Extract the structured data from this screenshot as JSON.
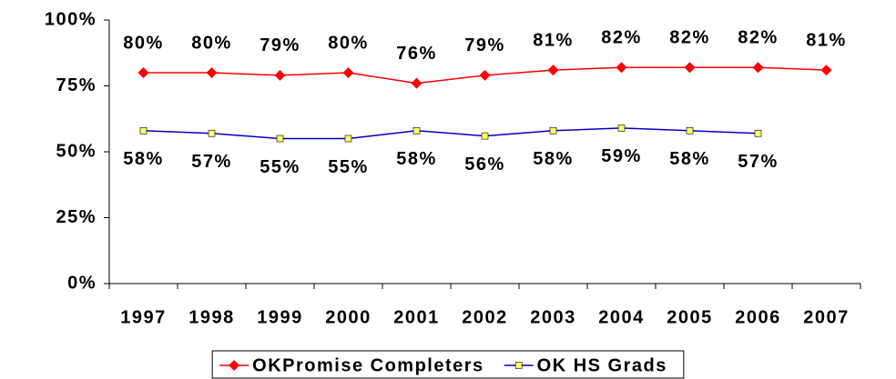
{
  "chart_data": {
    "type": "line",
    "categories": [
      "1997",
      "1998",
      "1999",
      "2000",
      "2001",
      "2002",
      "2003",
      "2004",
      "2005",
      "2006",
      "2007"
    ],
    "series": [
      {
        "name": "OKPromise Completers",
        "color": "#ff0000",
        "marker": "diamond",
        "label_position": "above",
        "values": [
          80,
          80,
          79,
          80,
          76,
          79,
          81,
          82,
          82,
          82,
          81
        ],
        "value_labels": [
          "80%",
          "80%",
          "79%",
          "80%",
          "76%",
          "79%",
          "81%",
          "82%",
          "82%",
          "82%",
          "81%"
        ]
      },
      {
        "name": "OK HS Grads",
        "color": "#0000cc",
        "marker": "square",
        "label_position": "below",
        "values": [
          58,
          57,
          55,
          55,
          58,
          56,
          58,
          59,
          58,
          57,
          null
        ],
        "value_labels": [
          "58%",
          "57%",
          "55%",
          "55%",
          "58%",
          "56%",
          "58%",
          "59%",
          "58%",
          "57%",
          null
        ]
      }
    ],
    "ylim": [
      0,
      100
    ],
    "yticks": [
      {
        "value": 0,
        "label": "0%"
      },
      {
        "value": 25,
        "label": "25%"
      },
      {
        "value": 50,
        "label": "50%"
      },
      {
        "value": 75,
        "label": "75%"
      },
      {
        "value": 100,
        "label": "100%"
      }
    ],
    "grid": false,
    "legend": "bottom"
  }
}
